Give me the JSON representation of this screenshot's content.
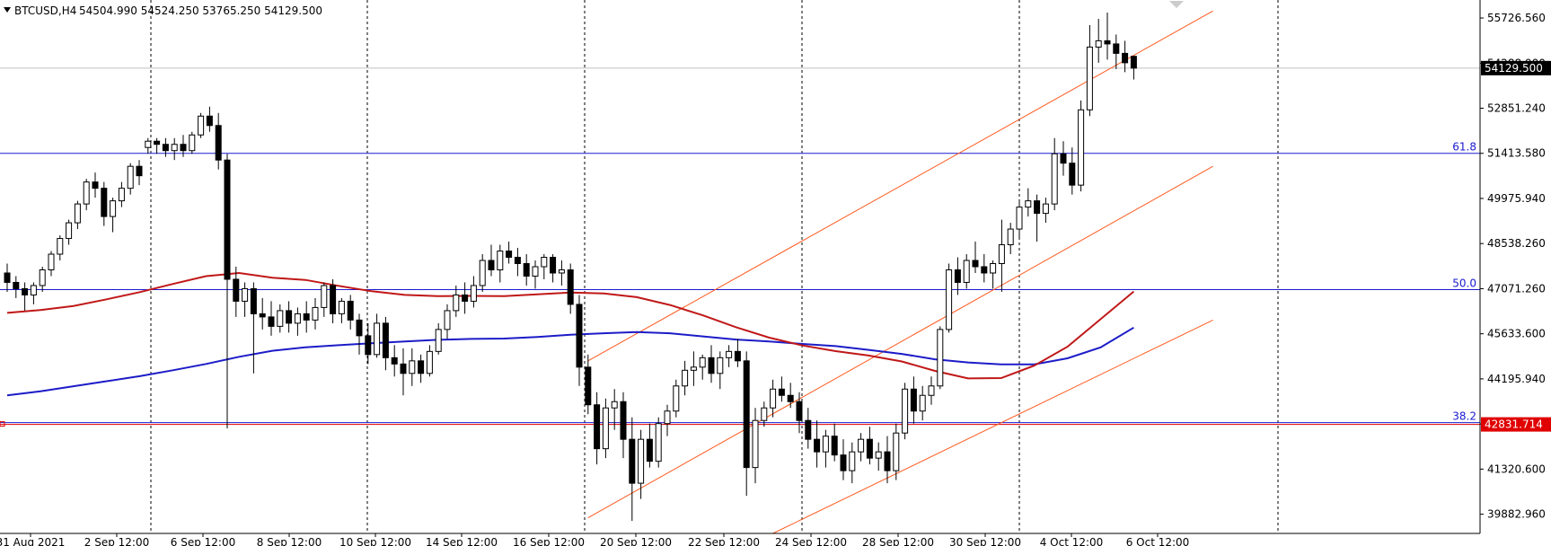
{
  "chart_data": {
    "type": "candlestick",
    "title": "BTCUSD,H4",
    "ohlc_header": [
      "54504.990",
      "54524.250",
      "53765.250",
      "54129.500"
    ],
    "ylim": [
      39300,
      56300
    ],
    "y_ticks": [
      "55726.560",
      "54288.900",
      "52851.240",
      "51413.580",
      "49975.940",
      "48538.260",
      "47071.260",
      "45633.600",
      "44195.940",
      "42758.280",
      "41320.600",
      "39882.960"
    ],
    "x_ticks": [
      "31 Aug 2021",
      "2 Sep 12:00",
      "6 Sep 12:00",
      "8 Sep 12:00",
      "10 Sep 12:00",
      "14 Sep 12:00",
      "16 Sep 12:00",
      "20 Sep 12:00",
      "22 Sep 12:00",
      "24 Sep 12:00",
      "28 Sep 12:00",
      "30 Sep 12:00",
      "4 Oct 12:00",
      "6 Oct 12:00"
    ],
    "current_price": "54129.500",
    "marked_price": "42831.714",
    "fib_levels": [
      {
        "label": "61.8",
        "value": 51413.58
      },
      {
        "label": "50.0",
        "value": 47071.26
      },
      {
        "label": "38.2",
        "value": 42831.714
      }
    ],
    "candles": [
      [
        47600,
        47900,
        47000,
        47300
      ],
      [
        47300,
        47500,
        46800,
        47100
      ],
      [
        47100,
        47300,
        46400,
        46900
      ],
      [
        46900,
        47300,
        46600,
        47200
      ],
      [
        47200,
        47800,
        47000,
        47700
      ],
      [
        47700,
        48300,
        47500,
        48200
      ],
      [
        48200,
        48800,
        48000,
        48700
      ],
      [
        48700,
        49300,
        48500,
        49200
      ],
      [
        49200,
        49900,
        49000,
        49800
      ],
      [
        49800,
        50600,
        49600,
        50500
      ],
      [
        50500,
        50800,
        50000,
        50300
      ],
      [
        50300,
        50500,
        49100,
        49400
      ],
      [
        49400,
        50000,
        48900,
        49900
      ],
      [
        49900,
        50500,
        49700,
        50300
      ],
      [
        50300,
        51100,
        50100,
        51000
      ],
      [
        51000,
        51200,
        50400,
        50700
      ],
      [
        51600,
        51900,
        51400,
        51800
      ],
      [
        51800,
        51900,
        51400,
        51700
      ],
      [
        51700,
        51900,
        51300,
        51500
      ],
      [
        51500,
        51900,
        51200,
        51700
      ],
      [
        51700,
        52000,
        51300,
        51500
      ],
      [
        51500,
        52100,
        51400,
        52000
      ],
      [
        52000,
        52700,
        51900,
        52600
      ],
      [
        52600,
        52900,
        52100,
        52300
      ],
      [
        52300,
        52700,
        50900,
        51200
      ],
      [
        51200,
        51400,
        42650,
        47400
      ],
      [
        47400,
        47800,
        46200,
        46700
      ],
      [
        46700,
        47300,
        46200,
        47100
      ],
      [
        47100,
        47300,
        44400,
        46300
      ],
      [
        46300,
        46800,
        45800,
        46200
      ],
      [
        46200,
        46700,
        45600,
        45900
      ],
      [
        45900,
        46600,
        45700,
        46400
      ],
      [
        46400,
        46700,
        45700,
        46000
      ],
      [
        46000,
        46500,
        45600,
        46300
      ],
      [
        46300,
        46700,
        45700,
        46100
      ],
      [
        46100,
        46800,
        45800,
        46500
      ],
      [
        46500,
        47300,
        46200,
        47200
      ],
      [
        47200,
        47400,
        46000,
        46300
      ],
      [
        46300,
        46800,
        46000,
        46700
      ],
      [
        46700,
        46900,
        45800,
        46100
      ],
      [
        46100,
        46300,
        45000,
        45600
      ],
      [
        45600,
        46000,
        44700,
        45000
      ],
      [
        45000,
        46300,
        44900,
        46000
      ],
      [
        46000,
        46200,
        44500,
        44900
      ],
      [
        44900,
        45300,
        44300,
        44700
      ],
      [
        44700,
        45200,
        43700,
        44400
      ],
      [
        44400,
        45200,
        44000,
        44800
      ],
      [
        44800,
        45000,
        44100,
        44400
      ],
      [
        44400,
        45300,
        44300,
        45100
      ],
      [
        45100,
        46000,
        45000,
        45800
      ],
      [
        45800,
        46600,
        45500,
        46400
      ],
      [
        46400,
        47200,
        46200,
        46900
      ],
      [
        46900,
        47300,
        46300,
        46700
      ],
      [
        46700,
        47500,
        46500,
        47200
      ],
      [
        47200,
        48200,
        47000,
        48000
      ],
      [
        48000,
        48500,
        47500,
        47700
      ],
      [
        47700,
        48500,
        47300,
        48300
      ],
      [
        48300,
        48600,
        47900,
        48100
      ],
      [
        48100,
        48400,
        47500,
        47900
      ],
      [
        47900,
        48200,
        47200,
        47500
      ],
      [
        47500,
        48000,
        47100,
        47800
      ],
      [
        47800,
        48200,
        47400,
        48100
      ],
      [
        48100,
        48200,
        47300,
        47600
      ],
      [
        47600,
        48000,
        47200,
        47700
      ],
      [
        47700,
        47900,
        46300,
        46600
      ],
      [
        46600,
        46900,
        44000,
        44600
      ],
      [
        44600,
        45000,
        43100,
        43400
      ],
      [
        43400,
        43800,
        41500,
        42000
      ],
      [
        42000,
        43600,
        41700,
        43300
      ],
      [
        43300,
        43900,
        42600,
        43500
      ],
      [
        43500,
        43800,
        41700,
        42300
      ],
      [
        42300,
        43000,
        39700,
        40900
      ],
      [
        40900,
        42600,
        40400,
        42300
      ],
      [
        42300,
        42800,
        41400,
        41600
      ],
      [
        41600,
        43000,
        41400,
        42800
      ],
      [
        42800,
        43400,
        42400,
        43200
      ],
      [
        43200,
        44200,
        43000,
        44000
      ],
      [
        44000,
        44800,
        43700,
        44500
      ],
      [
        44500,
        45100,
        44000,
        44600
      ],
      [
        44600,
        45000,
        44200,
        44900
      ],
      [
        44900,
        45300,
        44100,
        44400
      ],
      [
        44400,
        45100,
        43900,
        44900
      ],
      [
        44900,
        45300,
        44600,
        45100
      ],
      [
        45100,
        45500,
        44600,
        44800
      ],
      [
        44800,
        45100,
        40500,
        41400
      ],
      [
        41400,
        43300,
        40900,
        42900
      ],
      [
        42900,
        43500,
        42700,
        43300
      ],
      [
        43300,
        44200,
        43000,
        43900
      ],
      [
        43900,
        44300,
        43500,
        43700
      ],
      [
        43700,
        44100,
        43300,
        43500
      ],
      [
        43500,
        43800,
        42500,
        42900
      ],
      [
        42900,
        43300,
        42000,
        42300
      ],
      [
        42300,
        42900,
        41400,
        41900
      ],
      [
        41900,
        42600,
        41400,
        42400
      ],
      [
        42400,
        42800,
        41600,
        41800
      ],
      [
        41800,
        42300,
        41000,
        41300
      ],
      [
        41300,
        42200,
        40900,
        41900
      ],
      [
        41900,
        42500,
        41600,
        42300
      ],
      [
        42300,
        42700,
        41500,
        41700
      ],
      [
        41700,
        42200,
        41300,
        41900
      ],
      [
        41900,
        42400,
        40900,
        41300
      ],
      [
        41300,
        42800,
        41000,
        42500
      ],
      [
        42500,
        44100,
        42300,
        43900
      ],
      [
        43900,
        44300,
        42800,
        43200
      ],
      [
        43200,
        44000,
        42900,
        43700
      ],
      [
        43700,
        44300,
        43400,
        44000
      ],
      [
        44000,
        45900,
        43900,
        45800
      ],
      [
        45800,
        47900,
        45700,
        47700
      ],
      [
        47700,
        48100,
        46900,
        47300
      ],
      [
        47300,
        48200,
        47100,
        48000
      ],
      [
        48000,
        48600,
        47600,
        47800
      ],
      [
        47800,
        48200,
        47300,
        47600
      ],
      [
        47600,
        48000,
        47100,
        47900
      ],
      [
        47900,
        49300,
        47000,
        48500
      ],
      [
        48500,
        49200,
        48200,
        49000
      ],
      [
        49000,
        49900,
        48700,
        49700
      ],
      [
        49700,
        50300,
        49400,
        49900
      ],
      [
        49900,
        50100,
        48600,
        49500
      ],
      [
        49500,
        50000,
        49200,
        49800
      ],
      [
        49800,
        51900,
        49600,
        51400
      ],
      [
        51400,
        51800,
        50700,
        51100
      ],
      [
        51100,
        51600,
        50100,
        50400
      ],
      [
        50400,
        53100,
        50200,
        52800
      ],
      [
        52800,
        55500,
        52600,
        54800
      ],
      [
        54800,
        55700,
        54300,
        55000
      ],
      [
        55000,
        55900,
        54400,
        54900
      ],
      [
        54900,
        55200,
        54100,
        54600
      ],
      [
        54600,
        55000,
        54000,
        54300
      ],
      [
        54504.99,
        54524.25,
        53765.25,
        54129.5
      ]
    ],
    "ma_red": [
      46330,
      46420,
      46550,
      46760,
      46990,
      47250,
      47500,
      47600,
      47450,
      47380,
      47190,
      47020,
      46900,
      46860,
      46870,
      46860,
      46920,
      46980,
      46950,
      46830,
      46580,
      46250,
      45870,
      45540,
      45290,
      45110,
      44970,
      44780,
      44480,
      44240,
      44250,
      44650,
      45250,
      46130,
      47010
    ],
    "ma_blue": [
      43700,
      43830,
      43990,
      44150,
      44310,
      44500,
      44700,
      44930,
      45120,
      45230,
      45300,
      45360,
      45420,
      45470,
      45500,
      45510,
      45560,
      45630,
      45680,
      45720,
      45680,
      45580,
      45480,
      45420,
      45340,
      45270,
      45150,
      45020,
      44850,
      44750,
      44690,
      44690,
      44880,
      45230,
      45860
    ],
    "channel_upper": [
      {
        "i": 66,
        "value": 44800
      },
      {
        "i": 137,
        "value": 55950
      }
    ],
    "channel_middle": [
      {
        "i": 66,
        "value": 39800
      },
      {
        "i": 137,
        "value": 51000
      }
    ],
    "channel_lower": [
      {
        "i": 87,
        "value": 39300
      },
      {
        "i": 137,
        "value": 46100
      }
    ]
  }
}
